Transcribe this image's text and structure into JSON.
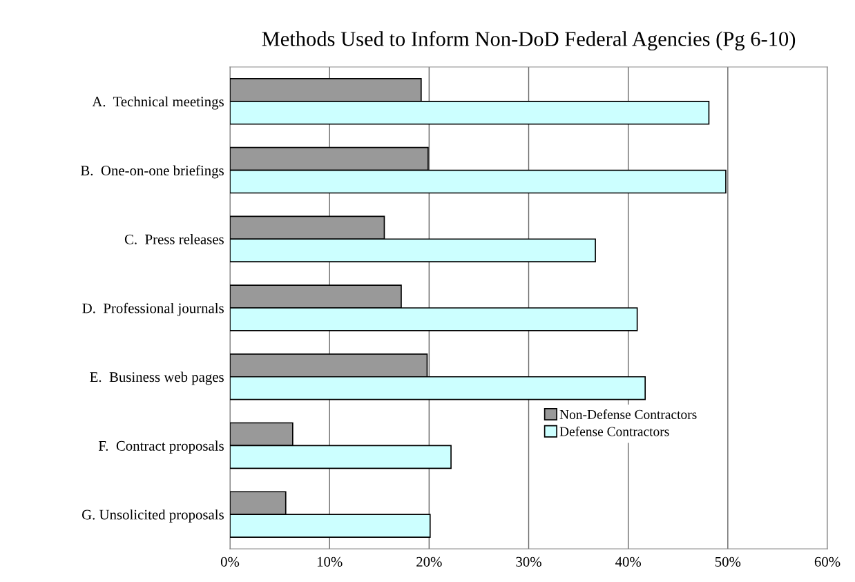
{
  "chart_data": {
    "type": "bar",
    "orientation": "horizontal",
    "title": "Methods Used to Inform Non-DoD Federal Agencies (Pg 6-10)",
    "categories": [
      "A.  Technical meetings",
      "B.  One-on-one briefings",
      "C.  Press releases",
      "D.  Professional journals",
      "E.  Business web pages",
      "F.  Contract proposals",
      "G. Unsolicited proposals"
    ],
    "series": [
      {
        "name": "Non-Defense Contractors",
        "color": "#999999",
        "values": [
          19.2,
          19.9,
          15.5,
          17.2,
          19.8,
          6.3,
          5.6
        ]
      },
      {
        "name": "Defense Contractors",
        "color": "#ccffff",
        "values": [
          48.1,
          49.8,
          36.7,
          40.9,
          41.7,
          22.2,
          20.1
        ]
      }
    ],
    "xlim": [
      0,
      60
    ],
    "xticks": [
      {
        "value": 0,
        "label": "0%"
      },
      {
        "value": 10,
        "label": "10%"
      },
      {
        "value": 20,
        "label": "20%"
      },
      {
        "value": 30,
        "label": "30%"
      },
      {
        "value": 40,
        "label": "40%"
      },
      {
        "value": 50,
        "label": "50%"
      },
      {
        "value": 60,
        "label": "60%"
      }
    ],
    "grid": "x",
    "legend": "bottom right"
  }
}
